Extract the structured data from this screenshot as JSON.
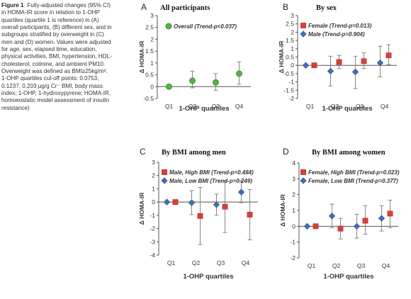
{
  "caption": {
    "label": "Figure 1",
    "text": "Fully-adjusted changes (95% CI) in HOMA-IR score in relation to 1-OHP quartiles (quartile 1 is reference) in (A) overall participants, (B) different sex, and in subgroups stratified by overweight in (C) men and (D) women. Values were adjusted for age, sex, elapsed time, education, physical activities, BMI, hypertension, HDL-cholesterol, cotinine, and ambient PM10. Overweight was defined as BMI≥25kg/m². 1-OHP quartiles cut-off points: 0.0753, 0.1237, 0.203 μg/g Cr⁻ BMI, body mass index; 1-OHP, 1-hydroxypyrene; HOMA-IR, homoeostatic model assessment of insulin resistance)"
  },
  "colors": {
    "overall": "#56b346",
    "female_high": "#d8403a",
    "male_low": "#3f6fb4",
    "errorbar": "#7a7a7a",
    "axis": "#555555"
  },
  "chart_data": [
    {
      "type": "scatter",
      "panel": "A",
      "title": "All participants",
      "xlabel": "1-OHP quartiles",
      "ylabel": "Δ HOMA-IR",
      "categories": [
        "Q1",
        "Q2",
        "Q3",
        "Q4"
      ],
      "ylim": [
        -0.5,
        3
      ],
      "yticks": [
        -0.5,
        0,
        0.5,
        1,
        1.5,
        2,
        2.5,
        3
      ],
      "legend_position": "top-left",
      "series": [
        {
          "name": "Overall (Trend-p<0.037)",
          "marker": "circle",
          "color": "#56b346",
          "values": [
            0,
            0.25,
            0.18,
            0.55
          ],
          "ci_low": [
            0,
            -0.05,
            -0.15,
            0.1
          ],
          "ci_high": [
            0,
            0.65,
            0.55,
            1.05
          ]
        }
      ]
    },
    {
      "type": "scatter",
      "panel": "B",
      "title": "By sex",
      "xlabel": "1-OHP quartiles",
      "ylabel": "Δ HOMA-IR",
      "categories": [
        "Q1",
        "Q2",
        "Q3",
        "Q4"
      ],
      "ylim": [
        -2,
        3
      ],
      "yticks": [
        -2,
        -1.5,
        -1,
        -0.5,
        0,
        0.5,
        1,
        1.5,
        2,
        2.5,
        3
      ],
      "legend_position": "top-left",
      "series": [
        {
          "name": "Female (Trend-p=0.013)",
          "marker": "square",
          "color": "#d8403a",
          "values": [
            0,
            0.2,
            0.25,
            0.6
          ],
          "ci_low": [
            0,
            -0.2,
            -0.2,
            0.05
          ],
          "ci_high": [
            0,
            0.6,
            0.75,
            1.25
          ]
        },
        {
          "name": "Male (Trend-p=0.904)",
          "marker": "diamond",
          "color": "#3f6fb4",
          "values": [
            0,
            -0.35,
            -0.4,
            0.15
          ],
          "ci_low": [
            0,
            -1.25,
            -1.4,
            -0.7
          ],
          "ci_high": [
            0,
            0.55,
            0.55,
            1.15
          ]
        }
      ]
    },
    {
      "type": "scatter",
      "panel": "C",
      "title": "By BMI among men",
      "xlabel": "1-OHP quartiles",
      "ylabel": "Δ HOMA-IR",
      "categories": [
        "Q1",
        "Q2",
        "Q3",
        "Q4"
      ],
      "ylim": [
        -4,
        3
      ],
      "yticks": [
        -4,
        -3,
        -2,
        -1,
        0,
        1,
        2,
        3
      ],
      "legend_position": "top-left",
      "series": [
        {
          "name": "Male, High BMI (Trend-p=0.484)",
          "marker": "square",
          "color": "#d8403a",
          "values": [
            0,
            -1.05,
            -0.35,
            -0.95
          ],
          "ci_low": [
            0,
            -3.2,
            -2.3,
            -2.85
          ],
          "ci_high": [
            0,
            1.1,
            1.6,
            0.95
          ]
        },
        {
          "name": "Male, Low BMI (Trend-p=0.249)",
          "marker": "diamond",
          "color": "#3f6fb4",
          "values": [
            0,
            -0.05,
            -0.2,
            0.75
          ],
          "ci_low": [
            0,
            -0.95,
            -1.0,
            -0.05
          ],
          "ci_high": [
            0,
            0.85,
            0.6,
            1.6
          ]
        }
      ]
    },
    {
      "type": "scatter",
      "panel": "D",
      "title": "By BMI among women",
      "xlabel": "1-OHP quartiles",
      "ylabel": "Δ HOMA-IR",
      "categories": [
        "Q1",
        "Q2",
        "Q3",
        "Q4"
      ],
      "ylim": [
        -2,
        4
      ],
      "yticks": [
        -2,
        -1,
        0,
        1,
        2,
        3,
        4
      ],
      "legend_position": "top-left",
      "series": [
        {
          "name": "Female, High BMI (Trend-p=0.023)",
          "marker": "square",
          "color": "#d8403a",
          "values": [
            0,
            -0.15,
            0.35,
            0.8
          ],
          "ci_low": [
            0,
            -0.8,
            -0.5,
            -0.1
          ],
          "ci_high": [
            0,
            0.5,
            1.3,
            1.65
          ]
        },
        {
          "name": "Female, Low BMI (Trend-p=0.377)",
          "marker": "diamond",
          "color": "#3f6fb4",
          "values": [
            0,
            0.65,
            0.0,
            0.5
          ],
          "ci_low": [
            0,
            -0.1,
            -0.75,
            -0.3
          ],
          "ci_high": [
            0,
            1.4,
            0.75,
            1.3
          ]
        }
      ]
    }
  ]
}
